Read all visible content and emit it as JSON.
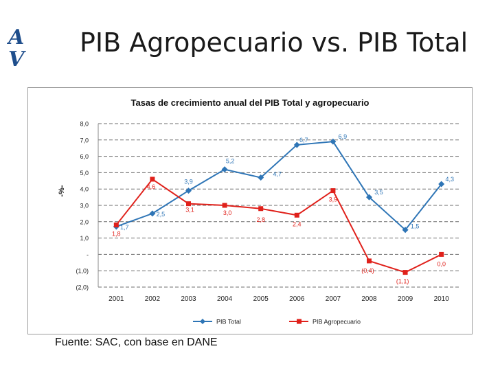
{
  "slide": {
    "title": "PIB Agropecuario vs. PIB Total",
    "source": "Fuente: SAC, con base en DANE",
    "logo_letters": "AV"
  },
  "chart_data": {
    "type": "line",
    "title": "Tasas de crecimiento anual del PIB Total y agropecuario",
    "ylabel": "-%-",
    "xlabel": "",
    "categories": [
      "2001",
      "2002",
      "2003",
      "2004",
      "2005",
      "2006",
      "2007",
      "2008",
      "2009",
      "2010"
    ],
    "ylim": [
      -2,
      8
    ],
    "yticks": [
      8,
      7,
      6,
      5,
      4,
      3,
      2,
      1,
      0,
      -1,
      -2
    ],
    "ytick_labels": [
      "8,0",
      "7,0",
      "6,0",
      "5,0",
      "4,0",
      "3,0",
      "2,0",
      "1,0",
      "-",
      "(1,0)",
      "(2,0)"
    ],
    "grid": true,
    "legend_position": "bottom",
    "series": [
      {
        "name": "PIB Total",
        "color": "#2e75b6",
        "marker": "diamond",
        "values": [
          1.7,
          2.5,
          3.9,
          5.2,
          4.7,
          6.7,
          6.9,
          3.5,
          1.5,
          4.3
        ],
        "labels": [
          "1,7",
          "2,5",
          "3,9",
          "5,2",
          "4,7",
          "6,7",
          "6,9",
          "3,5",
          "1,5",
          "4,3"
        ]
      },
      {
        "name": "PIB Agropecuario",
        "color": "#e0211b",
        "marker": "square",
        "values": [
          1.8,
          4.6,
          3.1,
          3.0,
          2.8,
          2.4,
          3.9,
          -0.4,
          -1.1,
          0.0
        ],
        "labels": [
          "1,8",
          "4,6",
          "3,1",
          "3,0",
          "2,8",
          "2,4",
          "3,9",
          "(0,4)",
          "(1,1)",
          "0,0"
        ]
      }
    ]
  }
}
